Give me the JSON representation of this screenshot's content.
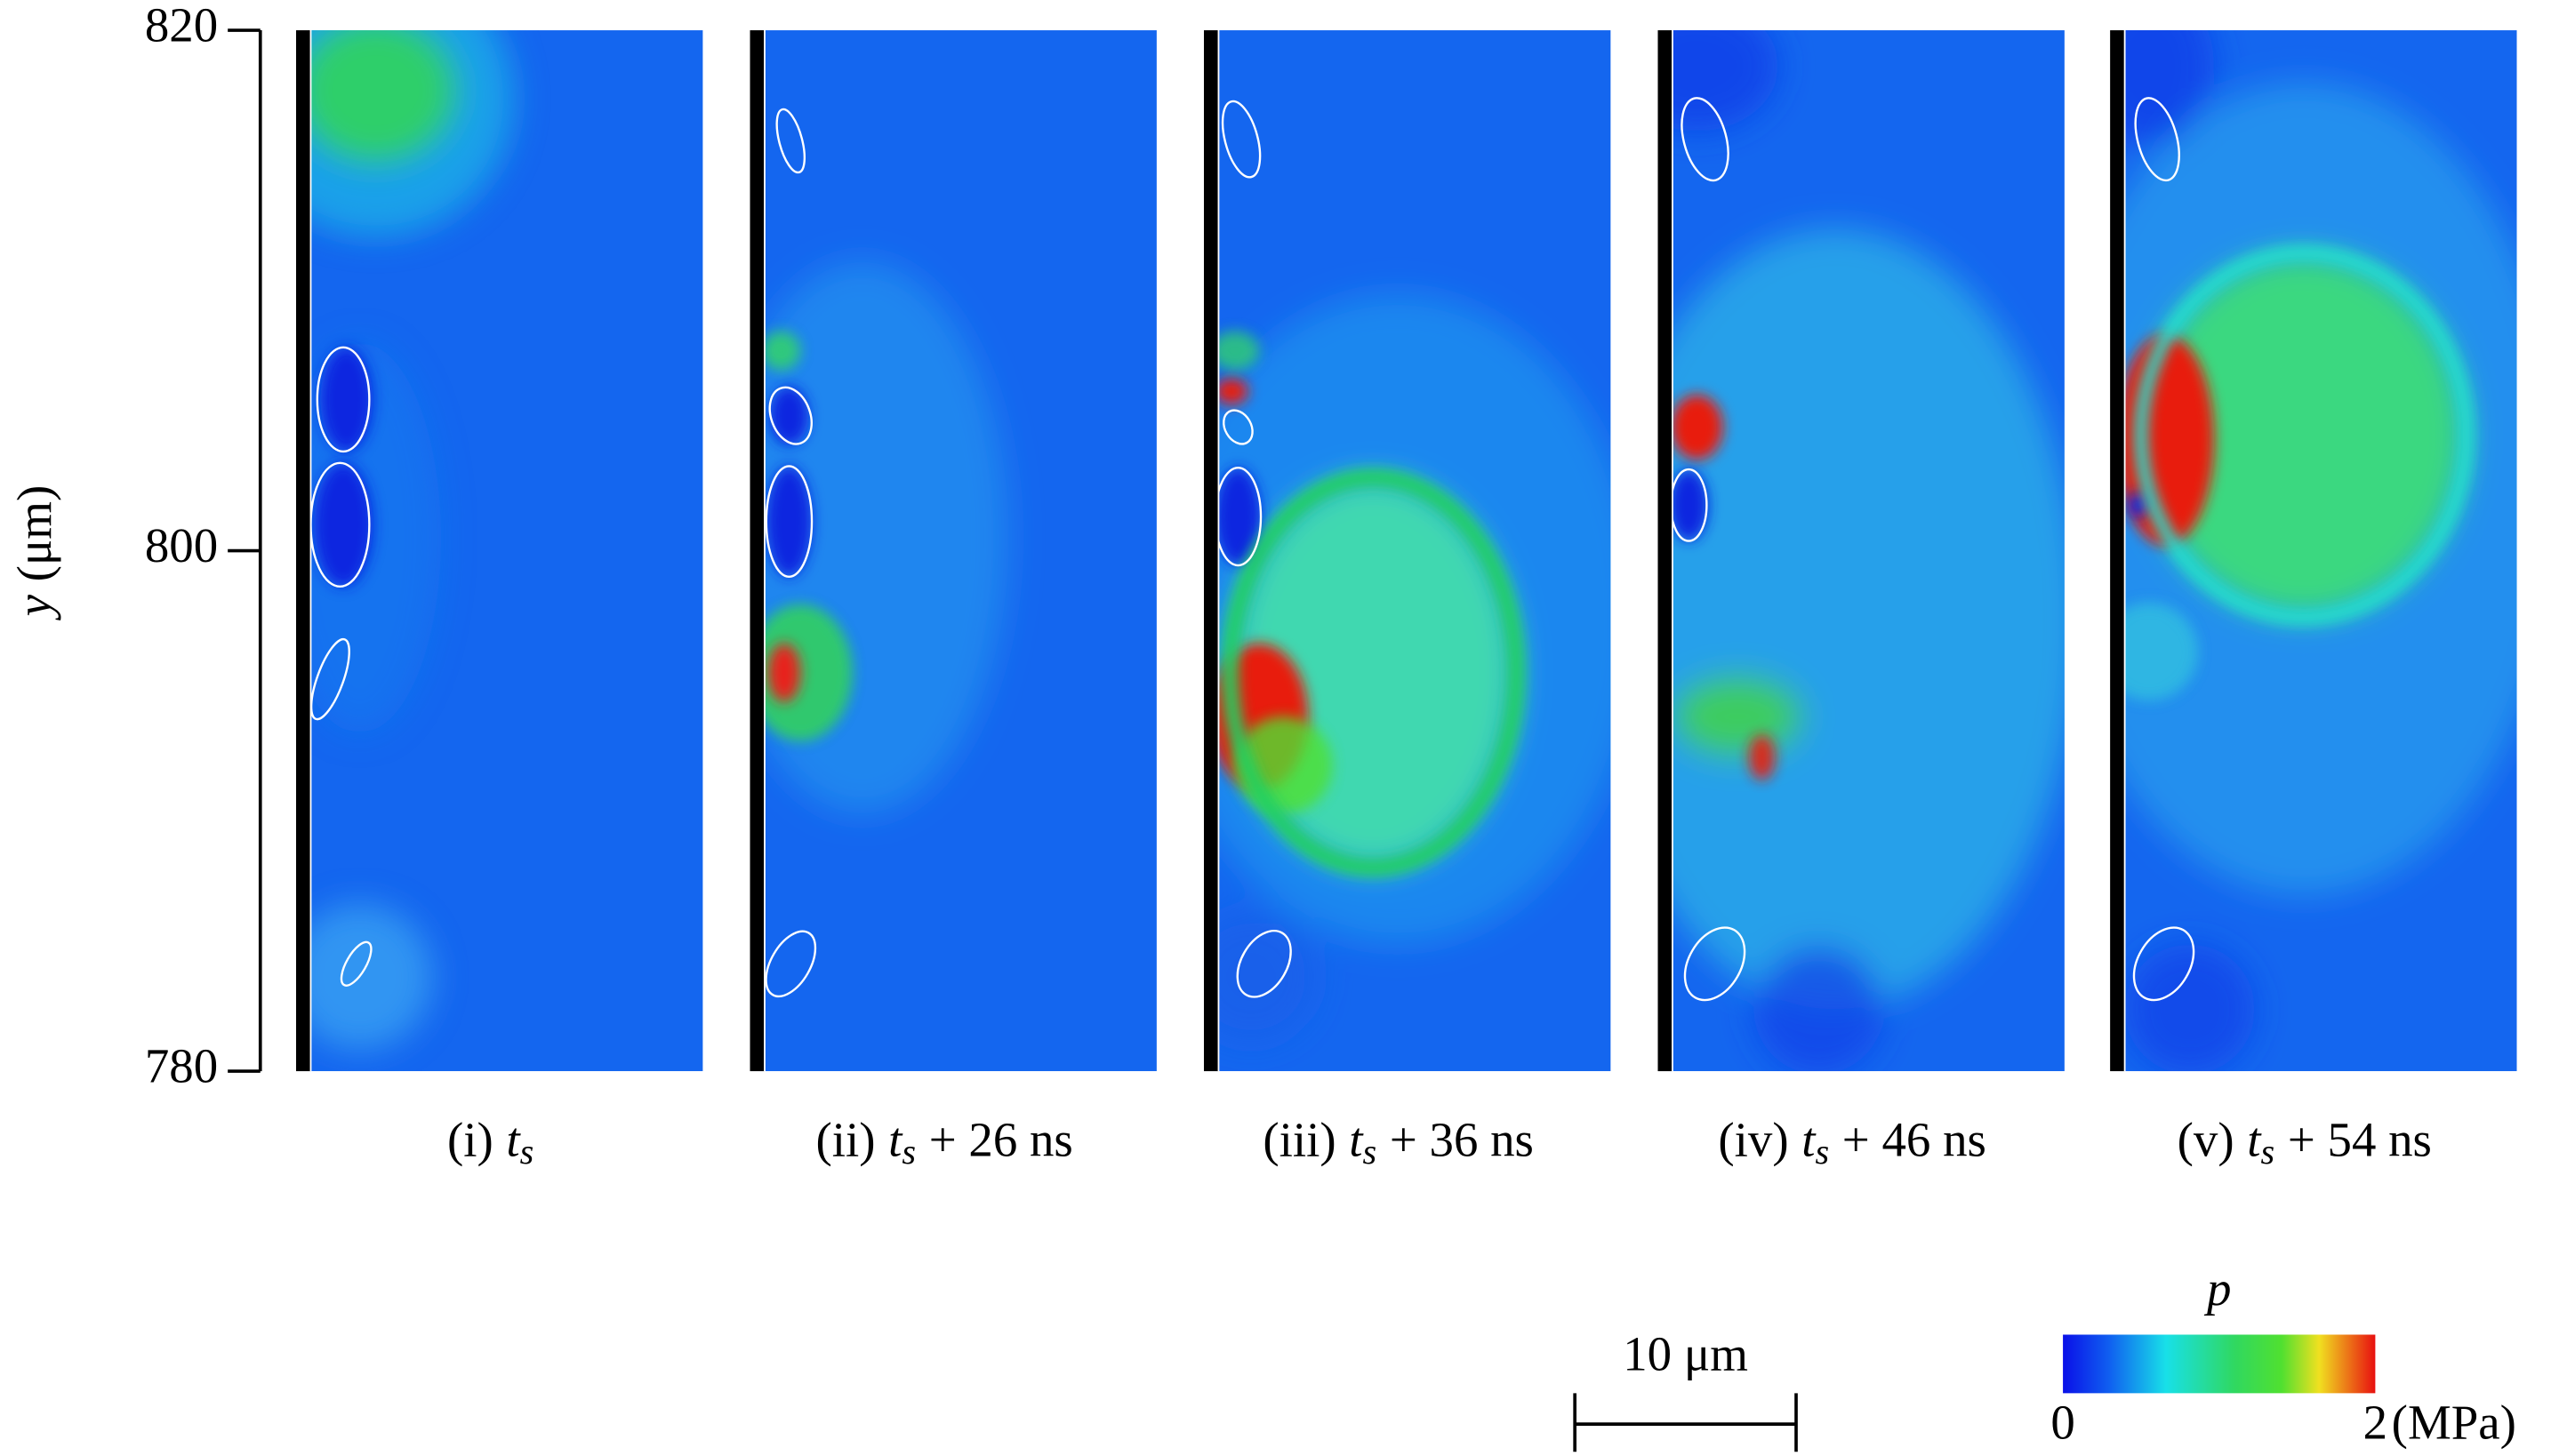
{
  "chart_data": {
    "type": "field",
    "ylabel": {
      "var": "y",
      "unit": "(μm)"
    },
    "ylim": [
      780,
      820
    ],
    "yticks": [
      780,
      800,
      820
    ],
    "panels": [
      {
        "prefix": "(i)",
        "t": "t",
        "sub": "s"
      },
      {
        "prefix": "(ii)",
        "t": "t",
        "sub": "s",
        "rest": "+ 26 ns"
      },
      {
        "prefix": "(iii)",
        "t": "t",
        "sub": "s",
        "rest": "+ 36 ns"
      },
      {
        "prefix": "(iv)",
        "t": "t",
        "sub": "s",
        "rest": "+ 46 ns"
      },
      {
        "prefix": "(v)",
        "t": "t",
        "sub": "s",
        "rest": "+ 54 ns"
      }
    ],
    "scale_bar": {
      "label": "10 μm",
      "length": 10
    },
    "colorbar": {
      "label": "p",
      "lim": [
        0,
        2
      ],
      "ticks": [
        0,
        2
      ],
      "unit": "(MPa)"
    }
  }
}
